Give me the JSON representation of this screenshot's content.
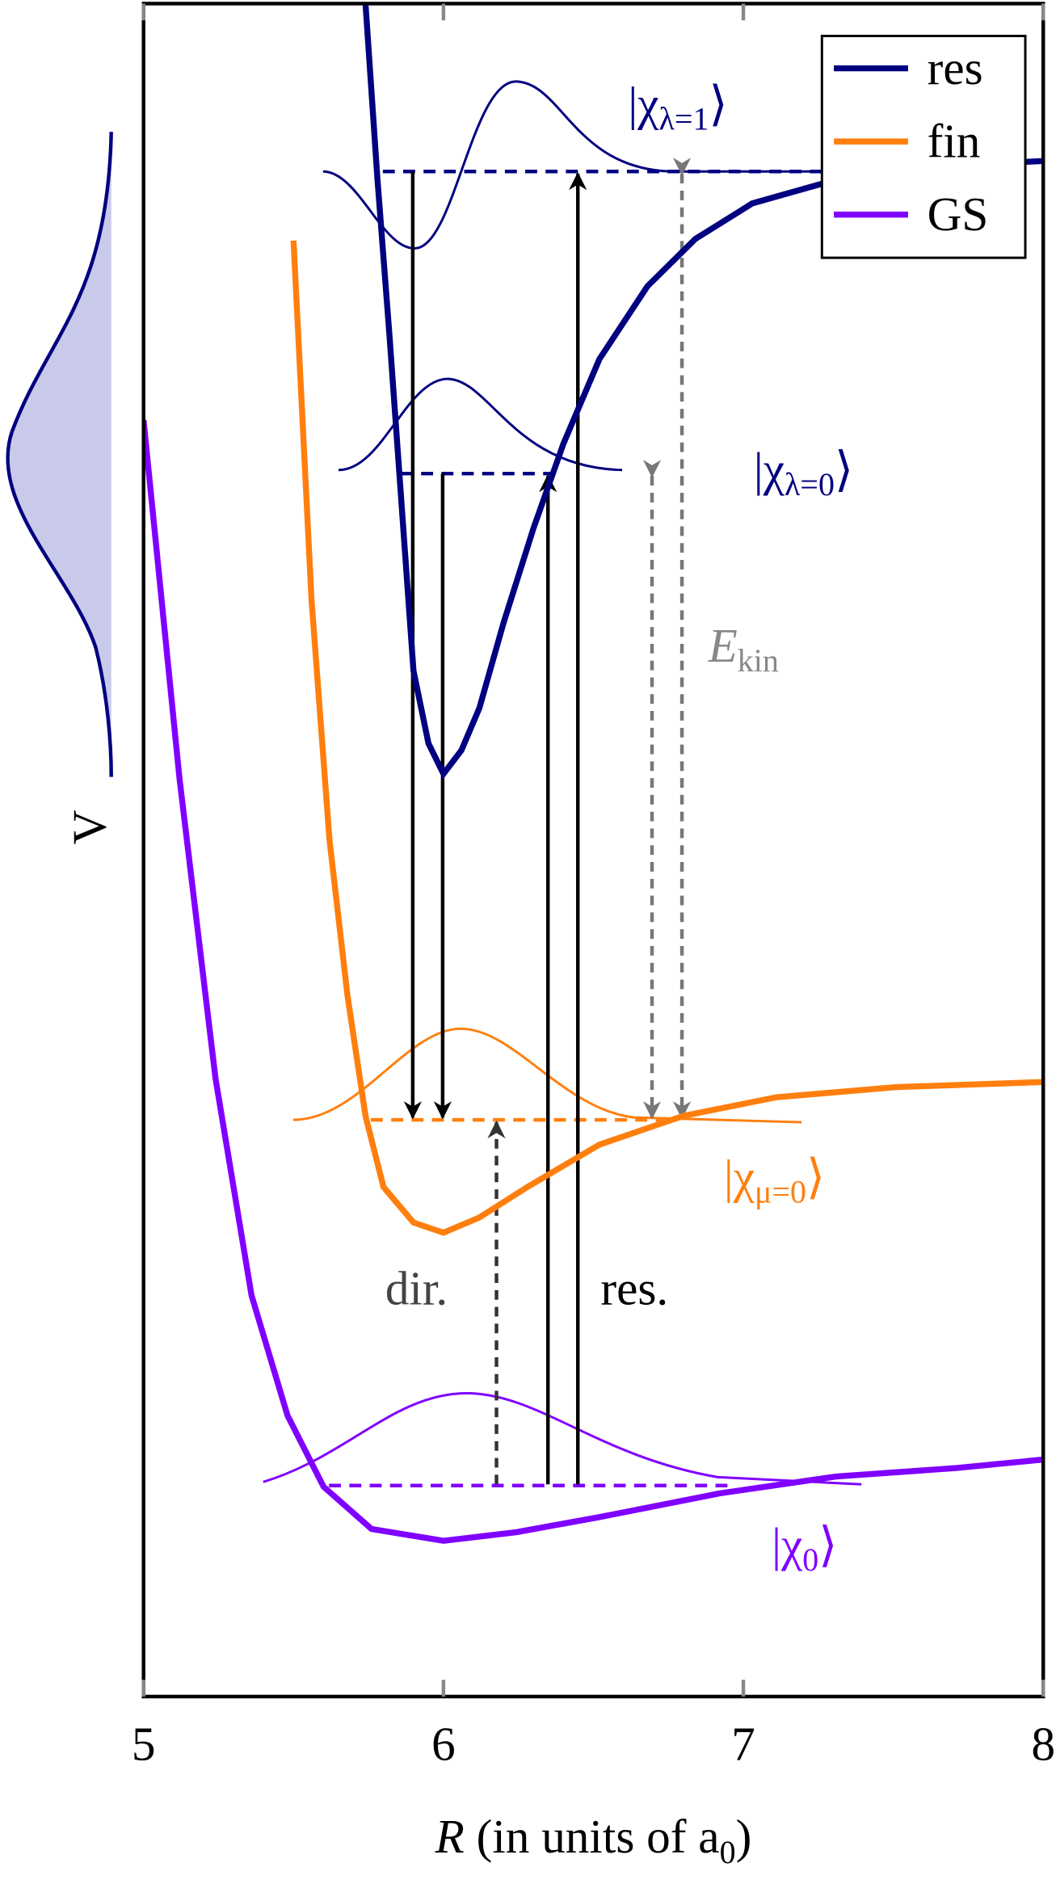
{
  "chart_data": {
    "type": "line",
    "xlim": [
      5,
      8
    ],
    "xticks": [
      5,
      6,
      7,
      8
    ],
    "ylim": [
      0,
      100
    ],
    "xlabel": {
      "var": "R",
      "text": " (in units of a",
      "sub": "0",
      "end": ")"
    },
    "ylabel": "V",
    "legend": "upper right",
    "series": [
      {
        "name": "res",
        "color": "#000080",
        "x": [
          5.74,
          5.78,
          5.82,
          5.86,
          5.9,
          5.95,
          6.0,
          6.06,
          6.12,
          6.2,
          6.3,
          6.4,
          6.52,
          6.68,
          6.84,
          7.03,
          7.31,
          7.63,
          8.0
        ],
        "values": [
          100,
          89.6,
          80.4,
          70.5,
          60.6,
          56.3,
          54.5,
          55.9,
          58.4,
          63.4,
          69.0,
          74.0,
          79.0,
          83.3,
          86.1,
          88.2,
          89.6,
          90.4,
          90.7
        ]
      },
      {
        "name": "fin",
        "color": "#ff7f0e",
        "x": [
          5.5,
          5.56,
          5.62,
          5.68,
          5.74,
          5.8,
          5.9,
          6.0,
          6.12,
          6.28,
          6.52,
          6.8,
          7.11,
          7.51,
          8.0
        ],
        "values": [
          86.0,
          64.8,
          50.6,
          41.4,
          34.3,
          30.1,
          28.0,
          27.4,
          28.3,
          30.1,
          32.6,
          34.3,
          35.4,
          36.0,
          36.3
        ]
      },
      {
        "name": "GS",
        "color": "#8000ff",
        "x": [
          5.0,
          5.12,
          5.24,
          5.36,
          5.48,
          5.6,
          5.76,
          6.0,
          6.24,
          6.52,
          6.92,
          7.31,
          7.71,
          8.0
        ],
        "values": [
          75.4,
          54.2,
          36.5,
          23.7,
          16.6,
          12.4,
          9.9,
          9.2,
          9.7,
          10.6,
          12.0,
          13.0,
          13.5,
          14.0
        ]
      }
    ],
    "annotations": [
      {
        "text": "|χ",
        "sub": "λ=1",
        "end": "⟩"
      },
      {
        "text": "|χ",
        "sub": "λ=0",
        "end": "⟩"
      },
      {
        "text": "|χ",
        "sub": "μ=0",
        "end": "⟩"
      },
      {
        "text": "|χ",
        "sub": "0",
        "end": "⟩"
      },
      {
        "text": "E",
        "sub": "kin"
      },
      {
        "text": "dir."
      },
      {
        "text": "res."
      }
    ]
  }
}
